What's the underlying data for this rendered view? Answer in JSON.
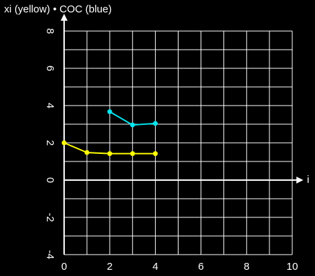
{
  "chart_data": {
    "type": "line",
    "title": "xi (yellow) • COC (blue)",
    "x_label": "i",
    "xlim": [
      0,
      10
    ],
    "xticks": [
      0,
      2,
      4,
      6,
      8,
      10
    ],
    "xminor": [
      1,
      3,
      5,
      7,
      9
    ],
    "ylim": [
      -4,
      8
    ],
    "yticks": [
      -4,
      -2,
      0,
      2,
      4,
      6,
      8
    ],
    "yminor": [
      -3,
      -1,
      1,
      3,
      5,
      7
    ],
    "grid": true,
    "series": [
      {
        "name": "xi",
        "color": "#ffff00",
        "x": [
          0,
          1,
          2,
          3,
          4
        ],
        "values": [
          2.0,
          1.48,
          1.42,
          1.42,
          1.42
        ]
      },
      {
        "name": "COC",
        "color": "#00e5ee",
        "x": [
          2,
          3,
          4
        ],
        "values": [
          3.67,
          2.96,
          3.04
        ]
      }
    ]
  }
}
